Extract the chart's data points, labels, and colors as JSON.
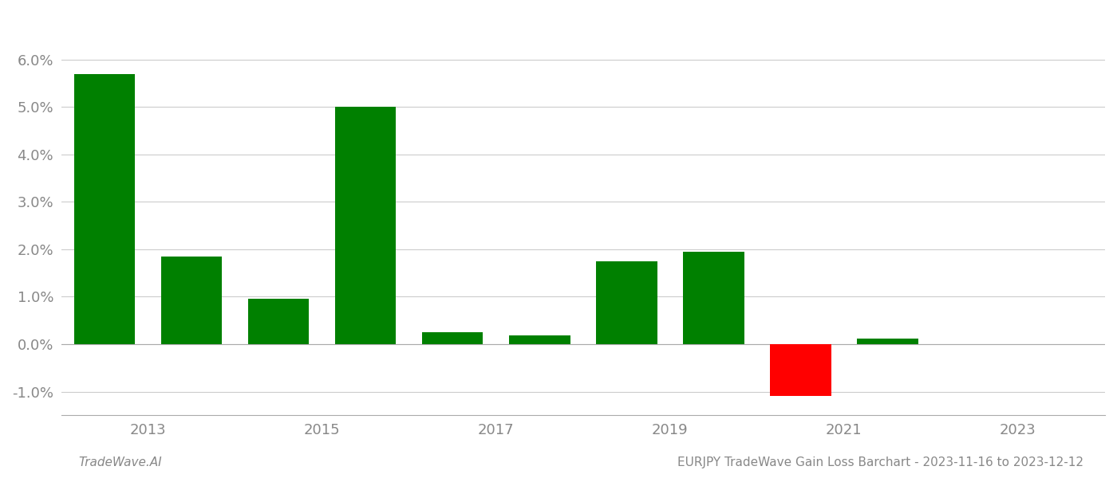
{
  "years": [
    2012.5,
    2013.5,
    2014.5,
    2015.5,
    2016.5,
    2017.5,
    2018.5,
    2019.5,
    2020.5,
    2021.5,
    2022.5
  ],
  "values": [
    0.057,
    0.0185,
    0.0095,
    0.05,
    0.0025,
    0.0018,
    0.0175,
    0.0195,
    -0.011,
    0.0012,
    null
  ],
  "bar_colors": [
    "#008000",
    "#008000",
    "#008000",
    "#008000",
    "#008000",
    "#008000",
    "#008000",
    "#008000",
    "#ff0000",
    "#008000",
    null
  ],
  "title": "EURJPY TradeWave Gain Loss Barchart - 2023-11-16 to 2023-12-12",
  "watermark": "TradeWave.AI",
  "ylim": [
    -0.015,
    0.068
  ],
  "yticks": [
    -0.01,
    0.0,
    0.01,
    0.02,
    0.03,
    0.04,
    0.05,
    0.06
  ],
  "ytick_labels": [
    "-1.0%",
    "0.0%",
    "1.0%",
    "2.0%",
    "3.0%",
    "4.0%",
    "5.0%",
    "6.0%"
  ],
  "xtick_positions": [
    2013,
    2015,
    2017,
    2019,
    2021,
    2023
  ],
  "xlim": [
    2012.0,
    2024.0
  ],
  "bar_width": 0.7,
  "background_color": "#ffffff",
  "grid_color": "#cccccc",
  "title_fontsize": 11,
  "watermark_fontsize": 11,
  "tick_fontsize": 13,
  "ylabel_color": "#888888"
}
